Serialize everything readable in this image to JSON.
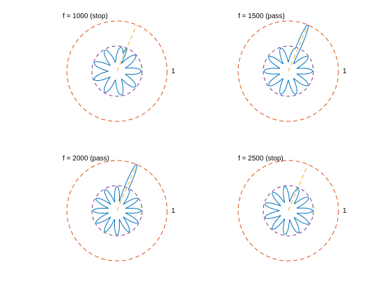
{
  "figure": {
    "colors": {
      "beam": "#0072BD",
      "outer_circle": "#D95319",
      "steer_line": "#EDB120",
      "inner_circle": "#7E2F8E",
      "marker": "#77AC30"
    }
  },
  "chart_data": [
    {
      "type": "polar-line",
      "title": "f = 1000 (stop)",
      "rlabel": "1",
      "steer_angle_deg": 67,
      "inner_radius": 0.5,
      "outer_radius": 1,
      "beam_peak": 0.5,
      "lobes": 9,
      "series": [
        {
          "name": "",
          "values": "beam pattern"
        }
      ]
    },
    {
      "type": "polar-line",
      "title": "f = 1500 (pass)",
      "rlabel": "1",
      "steer_angle_deg": 67,
      "inner_radius": 0.5,
      "outer_radius": 1,
      "beam_peak": 1.0,
      "lobes": 10,
      "series": [
        {
          "name": "",
          "values": "beam pattern"
        }
      ]
    },
    {
      "type": "polar-line",
      "title": "f = 2000 (pass)",
      "rlabel": "1",
      "steer_angle_deg": 67,
      "inner_radius": 0.5,
      "outer_radius": 1,
      "beam_peak": 1.0,
      "lobes": 12,
      "series": [
        {
          "name": "",
          "values": "beam pattern"
        }
      ]
    },
    {
      "type": "polar-line",
      "title": "f = 2500 (stop)",
      "rlabel": "1",
      "steer_angle_deg": 67,
      "inner_radius": 0.5,
      "outer_radius": 1,
      "beam_peak": 0.5,
      "lobes": 11,
      "series": [
        {
          "name": "",
          "values": "beam pattern"
        }
      ]
    }
  ]
}
